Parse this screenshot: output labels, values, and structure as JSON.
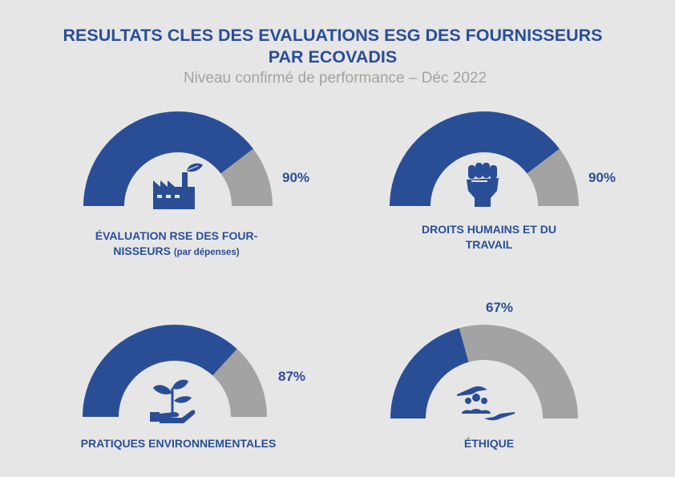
{
  "header": {
    "title_line1": "RESULTATS CLES DES EVALUATIONS ESG DES FOURNISSEURS",
    "title_line2": "PAR ECOVADIS",
    "subtitle": "Niveau confirmé de performance – Déc 2022"
  },
  "colors": {
    "primary": "#2a4e96",
    "remainder": "#a3a3a3",
    "background": "#e6e6e7"
  },
  "chart_data": [
    {
      "type": "gauge",
      "value": 90,
      "value_label": "90%",
      "label_main": "ÉVALUATION RSE DES FOUR-",
      "label_main2": "NISSEURS",
      "label_note": "(par dépenses)",
      "icon": "factory-leaf-icon",
      "range": [
        0,
        100
      ]
    },
    {
      "type": "gauge",
      "value": 90,
      "value_label": "90%",
      "label_main": "DROITS HUMAINS ET DU",
      "label_main2": "TRAVAIL",
      "icon": "raised-fist-icon",
      "range": [
        0,
        100
      ]
    },
    {
      "type": "gauge",
      "value": 87,
      "value_label": "87%",
      "label_main": "PRATIQUES ENVIRONNEMENTALES",
      "icon": "hand-plant-icon",
      "range": [
        0,
        100
      ]
    },
    {
      "type": "gauge",
      "value": 67,
      "value_label": "67%",
      "label_main": "ÉTHIQUE",
      "icon": "hands-people-icon",
      "range": [
        0,
        100
      ]
    }
  ]
}
